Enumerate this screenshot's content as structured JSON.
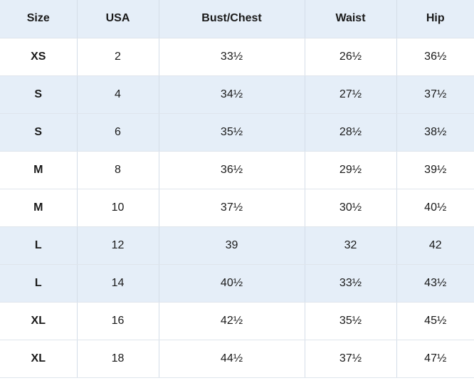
{
  "table": {
    "headers": [
      "Size",
      "USA",
      "Bust/Chest",
      "Waist",
      "Hip"
    ],
    "rows": [
      {
        "size": "XS",
        "usa": "2",
        "bust": "33½",
        "waist": "26½",
        "hip": "36½",
        "shaded": false
      },
      {
        "size": "S",
        "usa": "4",
        "bust": "34½",
        "waist": "27½",
        "hip": "37½",
        "shaded": true
      },
      {
        "size": "S",
        "usa": "6",
        "bust": "35½",
        "waist": "28½",
        "hip": "38½",
        "shaded": true
      },
      {
        "size": "M",
        "usa": "8",
        "bust": "36½",
        "waist": "29½",
        "hip": "39½",
        "shaded": false
      },
      {
        "size": "M",
        "usa": "10",
        "bust": "37½",
        "waist": "30½",
        "hip": "40½",
        "shaded": false
      },
      {
        "size": "L",
        "usa": "12",
        "bust": "39",
        "waist": "32",
        "hip": "42",
        "shaded": true
      },
      {
        "size": "L",
        "usa": "14",
        "bust": "40½",
        "waist": "33½",
        "hip": "43½",
        "shaded": true
      },
      {
        "size": "XL",
        "usa": "16",
        "bust": "42½",
        "waist": "35½",
        "hip": "45½",
        "shaded": false
      },
      {
        "size": "XL",
        "usa": "18",
        "bust": "44½",
        "waist": "37½",
        "hip": "47½",
        "shaded": false
      }
    ]
  },
  "colors": {
    "header_bg": "#e5eef8",
    "shaded_row_bg": "#e5eef8",
    "plain_row_bg": "#ffffff",
    "text": "#1a1a1a"
  }
}
